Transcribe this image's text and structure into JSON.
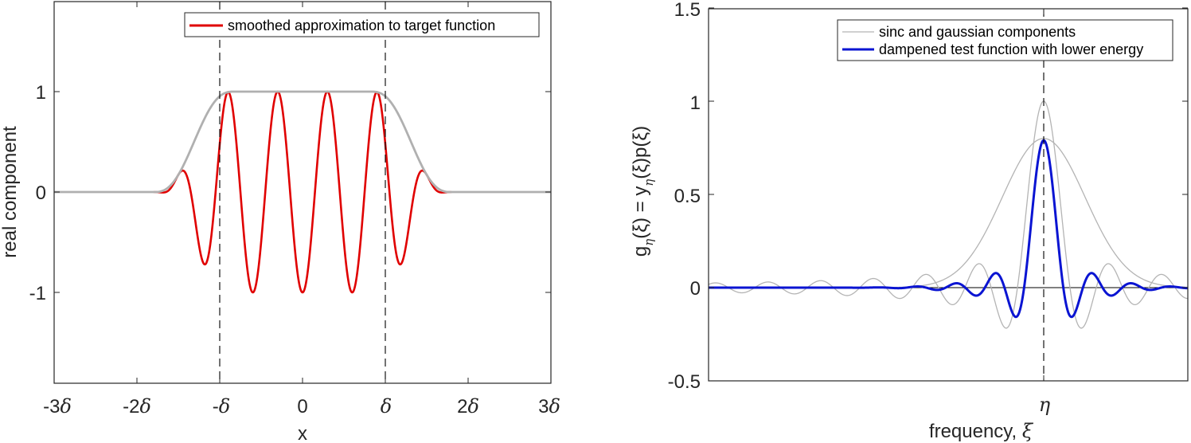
{
  "chart_data": [
    {
      "type": "line",
      "title": "",
      "xlabel": "x",
      "ylabel": "real component",
      "xlim": [
        "-3δ",
        "3δ"
      ],
      "ylim": [
        -1.9,
        1.9
      ],
      "x_ticks": [
        "-3δ",
        "-2δ",
        "-δ",
        "0",
        "δ",
        "2δ",
        "3δ"
      ],
      "x_tick_values": [
        -3,
        -2,
        -1,
        0,
        1,
        2,
        3
      ],
      "y_ticks": [
        "-1",
        "0",
        "1"
      ],
      "y_tick_values": [
        -1,
        0,
        1
      ],
      "grid": false,
      "legend_position": "top-right",
      "vertical_dashed_lines": [
        "-δ",
        "δ"
      ],
      "series": [
        {
          "name": "smoothed approximation to target function",
          "color": "#e00000",
          "in_legend": true,
          "description": "cos-like oscillation (≈8 cycles over [-δ,δ]) modulated by smooth envelope; peaks ≈1 inside [-δ,δ], decaying to 0 near ±1.8δ",
          "x": [
            -1.8,
            -1.7,
            -1.5,
            -1.35,
            -1.2,
            -1.05,
            -0.9,
            -0.6,
            -0.3,
            0,
            0.3,
            0.6,
            0.9,
            1.05,
            1.2,
            1.35,
            1.5,
            1.7,
            1.8
          ],
          "y": [
            0,
            -0.02,
            0.1,
            -0.3,
            0.6,
            -0.85,
            0.98,
            -1,
            1,
            -1,
            1,
            -1,
            0.98,
            -0.85,
            0.6,
            -0.3,
            0.1,
            -0.02,
            0
          ]
        },
        {
          "name": "envelope (target function)",
          "color": "#b0b0b0",
          "in_legend": false,
          "description": "smooth plateau: 0 for |x|>1.8δ, rising to 1 at |x|≈0.9δ, flat at 1 in between",
          "x": [
            -3,
            -1.8,
            -1.5,
            -1.3,
            -1.0,
            -0.85,
            0,
            0.85,
            1.0,
            1.3,
            1.5,
            1.8,
            3
          ],
          "y": [
            0,
            0,
            0.15,
            0.55,
            0.95,
            1,
            1,
            1,
            0.95,
            0.55,
            0.15,
            0,
            0
          ]
        }
      ]
    },
    {
      "type": "line",
      "title": "",
      "xlabel": "frequency, ξ",
      "ylabel": "g_η(ξ) = y_η(ξ)p(ξ)",
      "ylim": [
        -0.5,
        1.5
      ],
      "x_ticks": [
        "η"
      ],
      "y_ticks": [
        "-0.5",
        "0",
        "0.5",
        "1",
        "1.5"
      ],
      "y_tick_values": [
        -0.5,
        0,
        0.5,
        1,
        1.5
      ],
      "grid": false,
      "legend_position": "top-right",
      "vertical_dashed_lines": [
        "η"
      ],
      "horizontal_lines": [
        0
      ],
      "series": [
        {
          "name": "sinc and gaussian components",
          "color": "#b4b4b4",
          "in_legend": true,
          "components": {
            "sinc": {
              "peak": 1.0,
              "first_min": -0.22,
              "description": "narrow sinc centred at η, peak 1, sidelobes ±0.1 persisting across the whole axis"
            },
            "gaussian": {
              "peak": 0.8,
              "description": "wide gaussian centred at η, peak ≈0.8, reaches ≈0 about ±0.4 of axis half-width"
            }
          }
        },
        {
          "name": "dampened test function with lower energy",
          "color": "#0a14d2",
          "in_legend": true,
          "description": "product of sinc and gaussian; peak ≈0.79 at η, first minima ≈ -0.15, second maxima ≈0.07, decaying to 0",
          "peak": 0.79,
          "first_min": -0.15,
          "second_max": 0.07
        }
      ]
    }
  ],
  "left_panel": {
    "ylabel": "real component",
    "xlabel": "x",
    "legend": {
      "items": [
        {
          "label": "smoothed approximation to target function",
          "color": "#e00000"
        }
      ]
    },
    "xticks": [
      {
        "num": "-3",
        "sym": "δ"
      },
      {
        "num": "-2",
        "sym": "δ"
      },
      {
        "num": "-",
        "sym": "δ"
      },
      {
        "num": "0",
        "sym": ""
      },
      {
        "num": "",
        "sym": "δ"
      },
      {
        "num": "2",
        "sym": "δ"
      },
      {
        "num": "3",
        "sym": "δ"
      }
    ],
    "yticks": [
      "1",
      "0",
      "-1"
    ]
  },
  "right_panel": {
    "ylabel_main": "g",
    "ylabel_sub": "η",
    "ylabel_rest1": "(ξ) = y",
    "ylabel_sub2": "η",
    "ylabel_rest2": "(ξ)p(ξ)",
    "xlabel_text": "frequency, ",
    "xlabel_sym": "ξ",
    "xtick": "η",
    "yticks": [
      "1.5",
      "1",
      "0.5",
      "0",
      "-0.5"
    ],
    "legend": {
      "items": [
        {
          "label": "sinc and gaussian components",
          "color": "#b4b4b4"
        },
        {
          "label": "dampened test function with lower energy",
          "color": "#0a14d2"
        }
      ]
    }
  }
}
